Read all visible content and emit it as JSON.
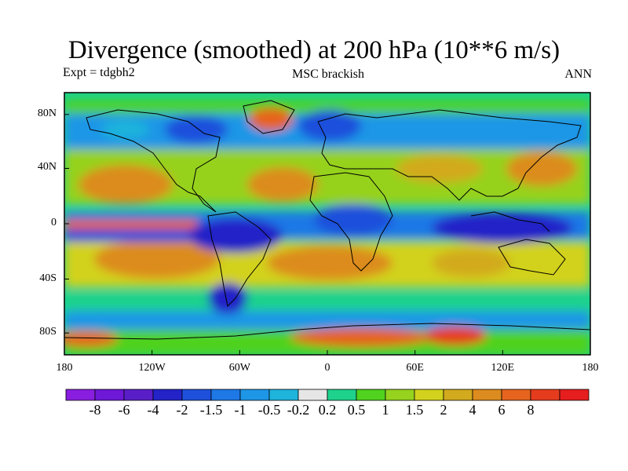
{
  "header": {
    "title": "Divergence (smoothed) at 200 hPa (10**6 m/s)",
    "experiment": "Expt = tdgbh2",
    "center_label": "MSC brackish",
    "period": "ANN"
  },
  "axes": {
    "y_ticks": [
      {
        "label": "80N",
        "lat": 75
      },
      {
        "label": "40N",
        "lat": 38
      },
      {
        "label": "0",
        "lat": 0
      },
      {
        "label": "40S",
        "lat": -38
      },
      {
        "label": "80S",
        "lat": -75
      }
    ],
    "x_ticks": [
      {
        "label": "180",
        "lon": -180
      },
      {
        "label": "120W",
        "lon": -120
      },
      {
        "label": "60W",
        "lon": -60
      },
      {
        "label": "0",
        "lon": 0
      },
      {
        "label": "60E",
        "lon": 60
      },
      {
        "label": "120E",
        "lon": 120
      },
      {
        "label": "180",
        "lon": 180
      }
    ]
  },
  "legend": {
    "colors": [
      "#8a1ee0",
      "#6e18d8",
      "#5a1ec8",
      "#2323c8",
      "#1e50dc",
      "#1e78e6",
      "#1e96e6",
      "#1eb4dc",
      "#e6e6e6",
      "#1ed28c",
      "#50d21e",
      "#96d21e",
      "#d2d21e",
      "#d2aa1e",
      "#dc8c1e",
      "#e6641e",
      "#e63c1e",
      "#e61e1e"
    ],
    "labels": [
      "-8",
      "-6",
      "-4",
      "-2",
      "-1.5",
      "-1",
      "-0.5",
      "-0.2",
      "0.2",
      "0.5",
      "1",
      "1.5",
      "2",
      "4",
      "6",
      "8"
    ]
  }
}
